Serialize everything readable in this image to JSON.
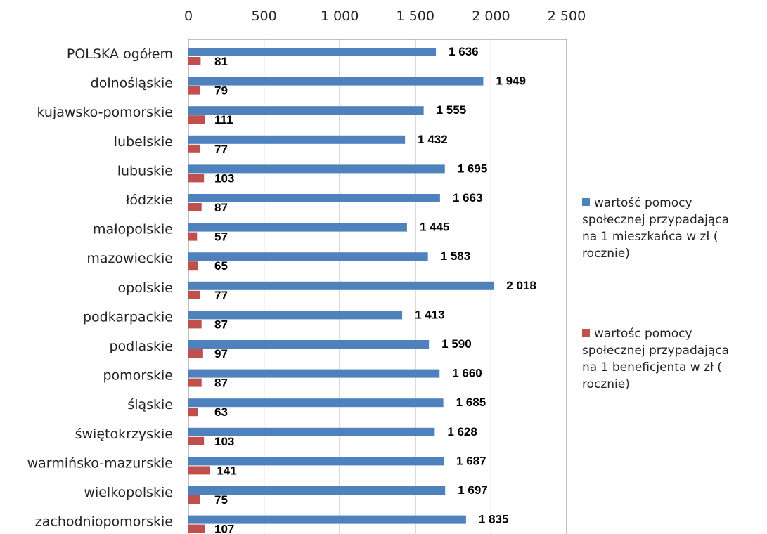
{
  "chart_data": {
    "type": "bar",
    "orientation": "horizontal",
    "categories": [
      "POLSKA ogółem",
      "dolnośląskie",
      "kujawsko-pomorskie",
      "lubelskie",
      "lubuskie",
      "łódzkie",
      "małopolskie",
      "mazowieckie",
      "opolskie",
      "podkarpackie",
      "podlaskie",
      "pomorskie",
      "śląskie",
      "świętokrzyskie",
      "warmińsko-mazurskie",
      "wielkopolskie",
      "zachodniopomorskie"
    ],
    "series": [
      {
        "name": "wartość pomocy społecznej przypadająca na 1 mieszkańca w zł ( rocznie)",
        "color": "#4F81BD",
        "values": [
          1636,
          1949,
          1555,
          1432,
          1695,
          1663,
          1445,
          1583,
          2018,
          1413,
          1590,
          1660,
          1685,
          1628,
          1687,
          1697,
          1835
        ],
        "labels": [
          "1 636",
          "1 949",
          "1 555",
          "1 432",
          "1 695",
          "1 663",
          "1 445",
          "1 583",
          "2 018",
          "1 413",
          "1 590",
          "1 660",
          "1 685",
          "1 628",
          "1 687",
          "1 697",
          "1 835"
        ]
      },
      {
        "name": "wartośc pomocy społecznej przypadająca na 1 beneficjenta w zł ( rocznie)",
        "color": "#C0504D",
        "values": [
          81,
          79,
          111,
          77,
          103,
          87,
          57,
          65,
          77,
          87,
          97,
          87,
          63,
          103,
          141,
          75,
          107
        ],
        "labels": [
          "81",
          "79",
          "111",
          "77",
          "103",
          "87",
          "57",
          "65",
          "77",
          "87",
          "97",
          "87",
          "63",
          "103",
          "141",
          "75",
          "107"
        ]
      }
    ],
    "xlim": [
      0,
      2500
    ],
    "x_ticks": [
      0,
      500,
      1000,
      1500,
      2000,
      2500
    ],
    "x_tick_labels": [
      "0",
      "500",
      "1 000",
      "1 500",
      "2 000",
      "2 500"
    ],
    "axis_position": "top",
    "grid": true,
    "legend_position": "right",
    "legend_lines": [
      [
        "wartość pomocy",
        "społecznej przypadająca",
        "na 1 mieszkańca w zł (",
        "rocznie)"
      ],
      [
        "wartośc pomocy",
        "społecznej przypadająca",
        "na 1 beneficjenta w zł (",
        "rocznie)"
      ]
    ]
  }
}
